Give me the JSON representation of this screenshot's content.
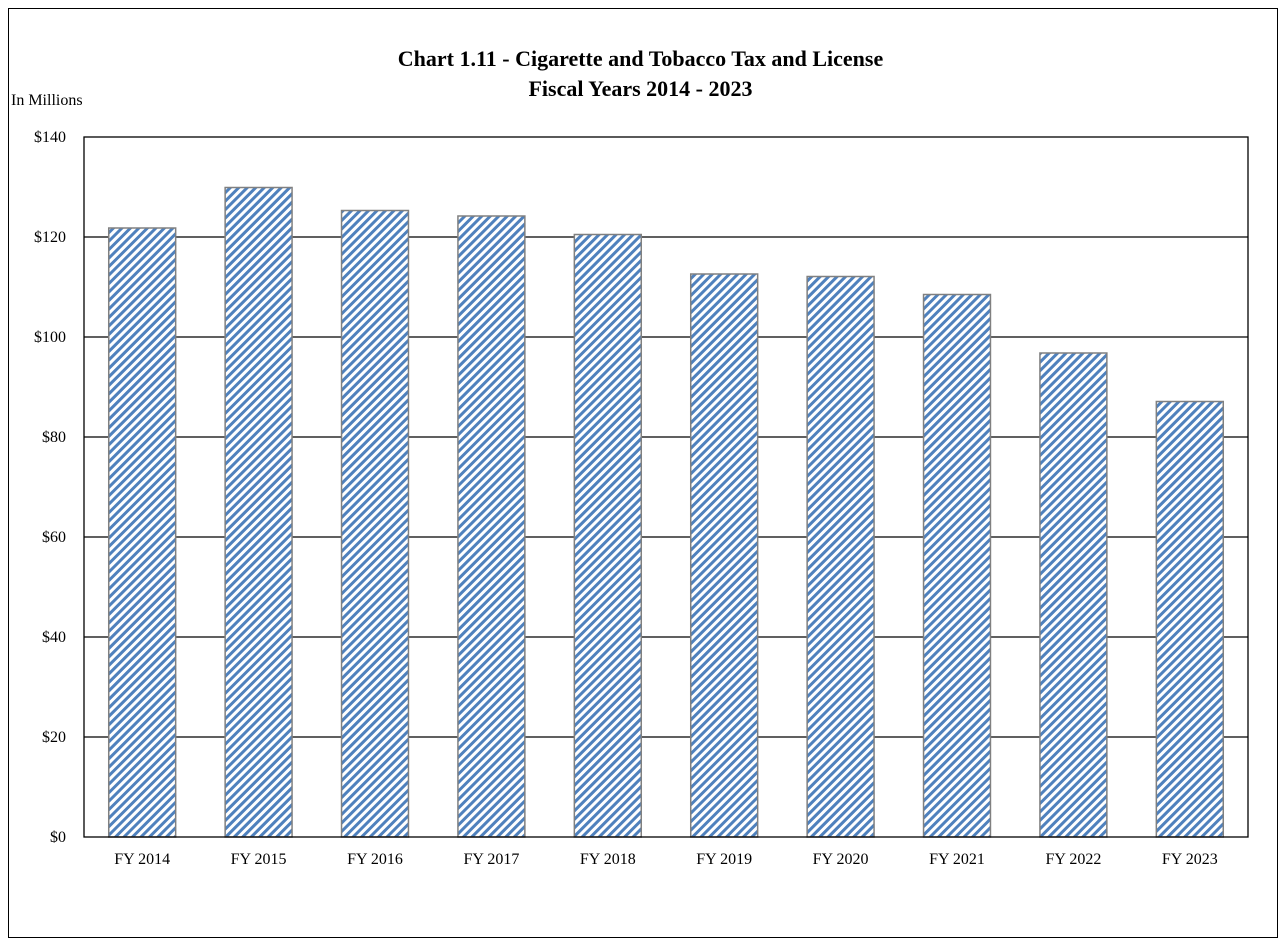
{
  "chart_data": {
    "type": "bar",
    "title": "Chart 1.11 - Cigarette and Tobacco Tax and License",
    "subtitle": "Fiscal Years 2014 - 2023",
    "ylabel": "In Millions",
    "xlabel": "",
    "categories": [
      "FY 2014",
      "FY 2015",
      "FY 2016",
      "FY 2017",
      "FY 2018",
      "FY 2019",
      "FY 2020",
      "FY 2021",
      "FY 2022",
      "FY 2023"
    ],
    "values": [
      121.8,
      129.9,
      125.3,
      124.2,
      120.5,
      112.6,
      112.1,
      108.5,
      96.8,
      87.1
    ],
    "ylim": [
      0,
      140
    ],
    "yticks": [
      0,
      20,
      40,
      60,
      80,
      100,
      120,
      140
    ],
    "ytick_labels": [
      "$0",
      "$20",
      "$40",
      "$60",
      "$80",
      "$100",
      "$120",
      "$140"
    ],
    "grid": true,
    "legend": "none",
    "colors": {
      "bar_stripe": "#4f81bd",
      "bar_border": "#808080",
      "gridline": "#000000"
    }
  }
}
